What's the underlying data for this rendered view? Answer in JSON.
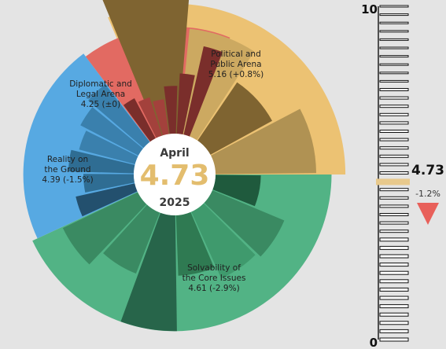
{
  "chart_data": {
    "type": "radial-bar",
    "scale": {
      "min": 0,
      "max": 10,
      "tick_labels": [
        "10",
        "0"
      ]
    },
    "center": {
      "month": "April",
      "value": "4.73",
      "year": "2025",
      "value_color": "#e3bd6e"
    },
    "segments": [
      {
        "name": "Political and Public Arena",
        "label_lines": [
          "Political and",
          "Public Arena",
          "5.16 (+0.8%)"
        ],
        "value": 5.16,
        "change": "+0.8%",
        "color": "#ecc273",
        "inner_values": [
          6.5,
          4.2,
          2.8,
          4.0
        ],
        "inner_colors": [
          "#7f6431",
          "#cca961",
          "#7f6431",
          "#b09253"
        ]
      },
      {
        "name": "Solvability of the Core Issues",
        "label_lines": [
          "Solvability of",
          "the Core Issues",
          "4.61 (-2.9%)"
        ],
        "value": 4.61,
        "change": "-2.9%",
        "color": "#52b385",
        "inner_values": [
          1.8,
          3.1,
          2.9,
          2.4,
          4.6,
          2.6,
          3.3
        ],
        "inner_colors": [
          "#1f5a3d",
          "#3a8a62",
          "#3f9a6d",
          "#2f7a52",
          "#27654a",
          "#3a8a62",
          "#3a8a62"
        ]
      },
      {
        "name": "Reality on the Ground",
        "label_lines": [
          "Reality on",
          "the Ground",
          "4.39 (-1.5%)"
        ],
        "value": 4.39,
        "change": "-1.5%",
        "color": "#57a9e2",
        "inner_values": [
          2.4,
          2.0,
          2.6,
          2.3,
          2.6,
          2.9
        ],
        "inner_colors": [
          "#23506e",
          "#2f6d93",
          "#2f6d93",
          "#3a80ad",
          "#3a80ad",
          "#3a80ad"
        ]
      },
      {
        "name": "Diplomatic and Legal Arena",
        "label_lines": [
          "Diplomatic and",
          "Legal Arena",
          "4.25 (±0)"
        ],
        "value": 4.25,
        "change": "±0",
        "color": "#e26a62",
        "inner_values": [
          1.8,
          1.6,
          1.4,
          1.9,
          2.4,
          3.6
        ],
        "inner_colors": [
          "#7a2e2b",
          "#a3413c",
          "#a3413c",
          "#7a2e2b",
          "#7a2e2b",
          "#7a2e2b"
        ]
      }
    ],
    "overall": {
      "value": "4.73",
      "change": "-1.2%",
      "direction": "down"
    }
  }
}
